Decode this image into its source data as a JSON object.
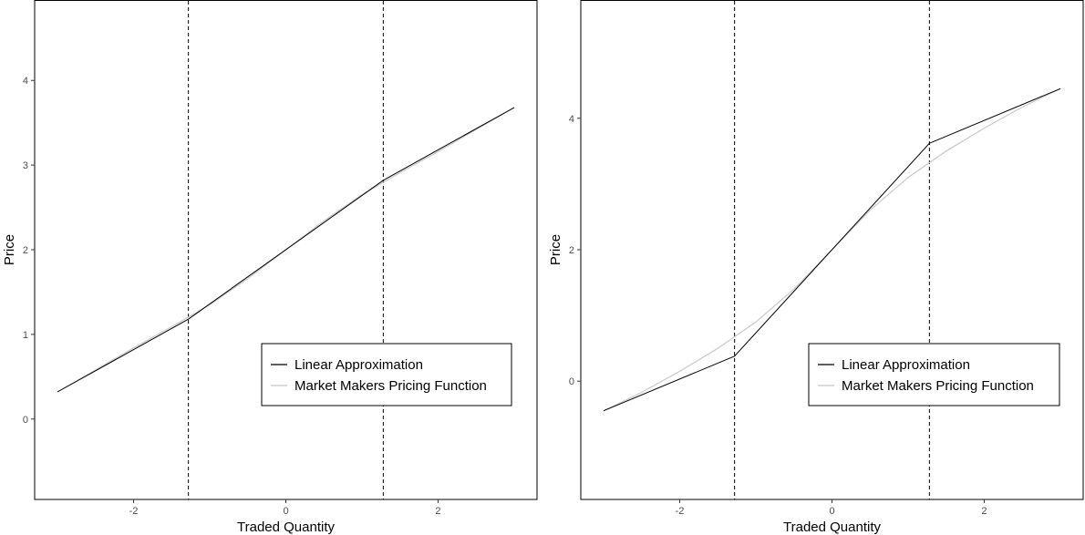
{
  "chart_data": [
    {
      "type": "line",
      "xlabel": "Traded Quantity",
      "ylabel": "Price",
      "xlim": [
        -3.3,
        3.3
      ],
      "ylim": [
        -0.95,
        4.95
      ],
      "xticks": [
        -2,
        0,
        2
      ],
      "yticks": [
        0,
        1,
        2,
        3,
        4
      ],
      "xtick_labels": [
        "-2",
        "0",
        "2"
      ],
      "ytick_labels": [
        "0",
        "1",
        "2",
        "3",
        "4"
      ],
      "vlines": [
        -1.28,
        1.28
      ],
      "vline_style": "dashed",
      "grid": false,
      "legend_position": "bottom-right",
      "series": [
        {
          "name": "Linear Approximation",
          "color": "#000000",
          "x": [
            -3.0,
            -1.28,
            1.28,
            3.0
          ],
          "y": [
            0.32,
            1.18,
            2.82,
            3.68
          ]
        },
        {
          "name": "Market Makers Pricing Function",
          "color": "#c8c8c8",
          "x": [
            -3.0,
            -2.5,
            -2.0,
            -1.5,
            -1.0,
            -0.5,
            0.0,
            0.5,
            1.0,
            1.5,
            2.0,
            2.5,
            3.0
          ],
          "y": [
            0.32,
            0.58,
            0.84,
            1.09,
            1.35,
            1.66,
            2.0,
            2.34,
            2.65,
            2.91,
            3.16,
            3.42,
            3.68
          ]
        }
      ]
    },
    {
      "type": "line",
      "xlabel": "Traded Quantity",
      "ylabel": "Price",
      "xlim": [
        -3.3,
        3.3
      ],
      "ylim": [
        -1.8,
        5.8
      ],
      "xticks": [
        -2,
        0,
        2
      ],
      "yticks": [
        0,
        2,
        4
      ],
      "xtick_labels": [
        "-2",
        "0",
        "2"
      ],
      "ytick_labels": [
        "0",
        "2",
        "4"
      ],
      "vlines": [
        -1.28,
        1.28
      ],
      "vline_style": "dashed",
      "grid": false,
      "legend_position": "bottom-right",
      "series": [
        {
          "name": "Linear Approximation",
          "color": "#000000",
          "x": [
            -3.0,
            -1.28,
            1.28,
            3.0
          ],
          "y": [
            -0.45,
            0.38,
            3.62,
            4.45
          ]
        },
        {
          "name": "Market Makers Pricing Function",
          "color": "#c8c8c8",
          "x": [
            -3.0,
            -2.5,
            -2.0,
            -1.5,
            -1.0,
            -0.5,
            0.0,
            0.5,
            1.0,
            1.5,
            2.0,
            2.5,
            3.0
          ],
          "y": [
            -0.45,
            -0.17,
            0.15,
            0.5,
            0.9,
            1.4,
            2.0,
            2.6,
            3.1,
            3.5,
            3.85,
            4.17,
            4.45
          ]
        }
      ]
    }
  ]
}
